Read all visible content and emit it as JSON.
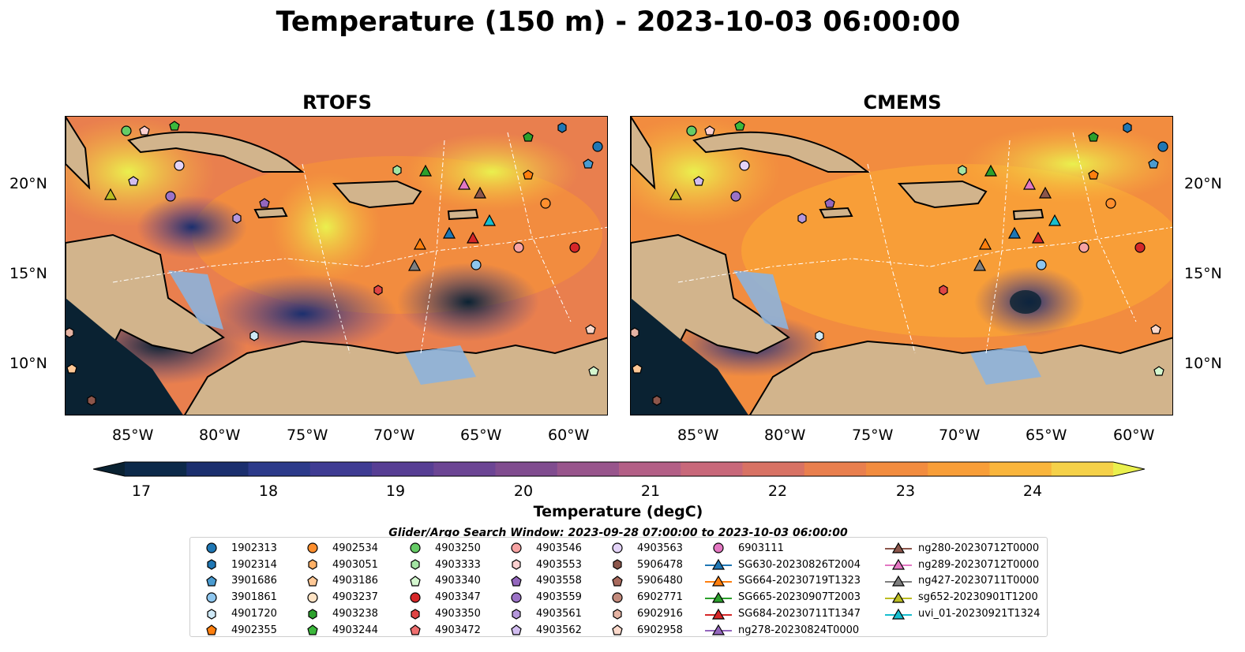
{
  "title": "Temperature (150 m) - 2023-10-03 06:00:00",
  "panels": [
    {
      "title": "RTOFS"
    },
    {
      "title": "CMEMS"
    }
  ],
  "axes": {
    "lat_ticks": [
      "20°N",
      "15°N",
      "10°N"
    ],
    "lon_ticks": [
      "85°W",
      "80°W",
      "75°W",
      "70°W",
      "65°W",
      "60°W"
    ]
  },
  "colorbar": {
    "label": "Temperature (degC)",
    "ticks": [
      "17",
      "18",
      "19",
      "20",
      "21",
      "22",
      "23",
      "24"
    ],
    "range": [
      16.5,
      24.5
    ],
    "step": 0.5,
    "colors": [
      "#0a2232",
      "#0d2a4a",
      "#1b2f6e",
      "#2c3a8a",
      "#3f3c93",
      "#573e94",
      "#6c4594",
      "#804c8f",
      "#98558c",
      "#b35f86",
      "#c8687a",
      "#d87264",
      "#e97f4e",
      "#f28c3f",
      "#f89e38",
      "#f9b53c",
      "#f5d149",
      "#eaf04e"
    ],
    "extend": "both"
  },
  "search_window": "Glider/Argo Search Window: 2023-09-28 07:00:00 to 2023-10-03 06:00:00",
  "legend": [
    {
      "label": "1902313",
      "marker": "circle",
      "color": "#1f77b4"
    },
    {
      "label": "1902314",
      "marker": "hexagon",
      "color": "#1f77b4"
    },
    {
      "label": "3901686",
      "marker": "pentagon",
      "color": "#4a9bd0"
    },
    {
      "label": "3901861",
      "marker": "circle",
      "color": "#8ec6ee"
    },
    {
      "label": "4901720",
      "marker": "hexagon",
      "color": "#cfe9f7"
    },
    {
      "label": "4902355",
      "marker": "pentagon",
      "color": "#ff7f0e"
    },
    {
      "label": "4902534",
      "marker": "circle",
      "color": "#ff8f2e"
    },
    {
      "label": "4903051",
      "marker": "hexagon",
      "color": "#ffb066"
    },
    {
      "label": "4903186",
      "marker": "pentagon",
      "color": "#ffc896"
    },
    {
      "label": "4903237",
      "marker": "circle",
      "color": "#ffe3c4"
    },
    {
      "label": "4903238",
      "marker": "hexagon",
      "color": "#2ca02c"
    },
    {
      "label": "4903244",
      "marker": "pentagon",
      "color": "#3cb83c"
    },
    {
      "label": "4903250",
      "marker": "circle",
      "color": "#66cc66"
    },
    {
      "label": "4903333",
      "marker": "hexagon",
      "color": "#a3e4a3"
    },
    {
      "label": "4903340",
      "marker": "pentagon",
      "color": "#d4f7cf"
    },
    {
      "label": "4903347",
      "marker": "circle",
      "color": "#d62728"
    },
    {
      "label": "4903350",
      "marker": "hexagon",
      "color": "#e04545"
    },
    {
      "label": "4903472",
      "marker": "pentagon",
      "color": "#ef6f6f"
    },
    {
      "label": "4903546",
      "marker": "circle",
      "color": "#f7a3a3"
    },
    {
      "label": "4903553",
      "marker": "hexagon",
      "color": "#fcd0d0"
    },
    {
      "label": "4903558",
      "marker": "pentagon",
      "color": "#9467bd"
    },
    {
      "label": "4903559",
      "marker": "circle",
      "color": "#9b72c6"
    },
    {
      "label": "4903561",
      "marker": "hexagon",
      "color": "#b597dc"
    },
    {
      "label": "4903562",
      "marker": "pentagon",
      "color": "#d2bdf0"
    },
    {
      "label": "4903563",
      "marker": "circle",
      "color": "#e3d3f7"
    },
    {
      "label": "5906478",
      "marker": "hexagon",
      "color": "#8c564b"
    },
    {
      "label": "5906480",
      "marker": "pentagon",
      "color": "#a86a5d"
    },
    {
      "label": "6902771",
      "marker": "circle",
      "color": "#c28a7c"
    },
    {
      "label": "6902916",
      "marker": "hexagon",
      "color": "#e5b3a3"
    },
    {
      "label": "6902958",
      "marker": "pentagon",
      "color": "#fbd9cb"
    },
    {
      "label": "6903111",
      "marker": "circle",
      "color": "#e377c2"
    },
    {
      "label": "SG630-20230826T2004",
      "marker": "triangle",
      "color": "#1f77b4"
    },
    {
      "label": "SG664-20230719T1323",
      "marker": "triangle",
      "color": "#ff7f0e"
    },
    {
      "label": "SG665-20230907T2003",
      "marker": "triangle",
      "color": "#2ca02c"
    },
    {
      "label": "SG684-20230711T1347",
      "marker": "triangle",
      "color": "#d62728"
    },
    {
      "label": "ng278-20230824T0000",
      "marker": "triangle",
      "color": "#9467bd"
    },
    {
      "label": "ng280-20230712T0000",
      "marker": "triangle",
      "color": "#8c564b"
    },
    {
      "label": "ng289-20230712T0000",
      "marker": "triangle",
      "color": "#e377c2"
    },
    {
      "label": "ng427-20230711T0000",
      "marker": "triangle",
      "color": "#7f7f7f"
    },
    {
      "label": "sg652-20230901T1200",
      "marker": "triangle",
      "color": "#bcbd22"
    },
    {
      "label": "uvi_01-20230921T1324",
      "marker": "triangle",
      "color": "#17becf"
    }
  ]
}
